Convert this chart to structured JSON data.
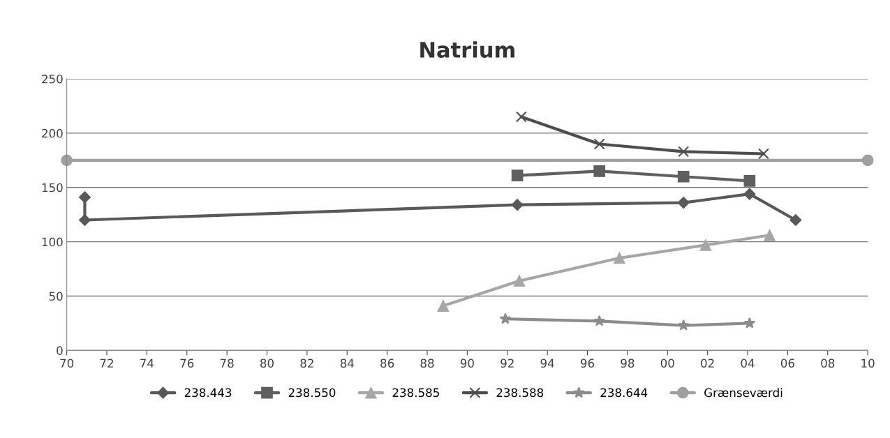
{
  "chart_data": {
    "type": "line",
    "title": "Natrium",
    "xlim": [
      1970,
      2010
    ],
    "xticks": [
      {
        "value": 1970,
        "label": "70"
      },
      {
        "value": 1972,
        "label": "72"
      },
      {
        "value": 1974,
        "label": "74"
      },
      {
        "value": 1976,
        "label": "76"
      },
      {
        "value": 1978,
        "label": "78"
      },
      {
        "value": 1980,
        "label": "80"
      },
      {
        "value": 1982,
        "label": "82"
      },
      {
        "value": 1984,
        "label": "84"
      },
      {
        "value": 1986,
        "label": "86"
      },
      {
        "value": 1988,
        "label": "88"
      },
      {
        "value": 1990,
        "label": "90"
      },
      {
        "value": 1992,
        "label": "92"
      },
      {
        "value": 1994,
        "label": "94"
      },
      {
        "value": 1996,
        "label": "96"
      },
      {
        "value": 1998,
        "label": "98"
      },
      {
        "value": 2000,
        "label": "00"
      },
      {
        "value": 2002,
        "label": "02"
      },
      {
        "value": 2004,
        "label": "04"
      },
      {
        "value": 2006,
        "label": "06"
      },
      {
        "value": 2008,
        "label": "08"
      },
      {
        "value": 2010,
        "label": "10"
      }
    ],
    "ylim": [
      0,
      250
    ],
    "yticks": [
      0,
      50,
      100,
      150,
      200,
      250
    ],
    "grid": "y",
    "legend": "bottom",
    "line_style": "solid",
    "series": [
      {
        "name": "238.443",
        "color": "#595959",
        "marker": "diamond",
        "x": [
          1970.9,
          1970.9,
          1992.5,
          2000.8,
          2004.1,
          2006.4
        ],
        "values": [
          141,
          120,
          134,
          136,
          144,
          120
        ]
      },
      {
        "name": "238.550",
        "color": "#5f5f5f",
        "marker": "square",
        "x": [
          1992.5,
          1996.6,
          2000.8,
          2004.1
        ],
        "values": [
          161,
          165,
          160,
          156
        ]
      },
      {
        "name": "238.585",
        "color": "#a6a6a6",
        "marker": "triangle",
        "x": [
          1988.8,
          1992.6,
          1997.6,
          2001.9,
          2005.1
        ],
        "values": [
          41,
          64,
          85,
          97,
          106
        ]
      },
      {
        "name": "238.588",
        "color": "#4d4d4d",
        "marker": "cross",
        "x": [
          1992.7,
          1996.6,
          2000.8,
          2004.8
        ],
        "values": [
          215,
          190,
          183,
          181
        ]
      },
      {
        "name": "238.644",
        "color": "#8c8c8c",
        "marker": "star",
        "x": [
          1991.9,
          1996.6,
          2000.8,
          2004.1
        ],
        "values": [
          29,
          27,
          23,
          25
        ]
      },
      {
        "name": "Grænseværdi",
        "color": "#a0a0a0",
        "marker": "circle",
        "x": [
          1970,
          2010
        ],
        "values": [
          175,
          175
        ]
      }
    ]
  }
}
